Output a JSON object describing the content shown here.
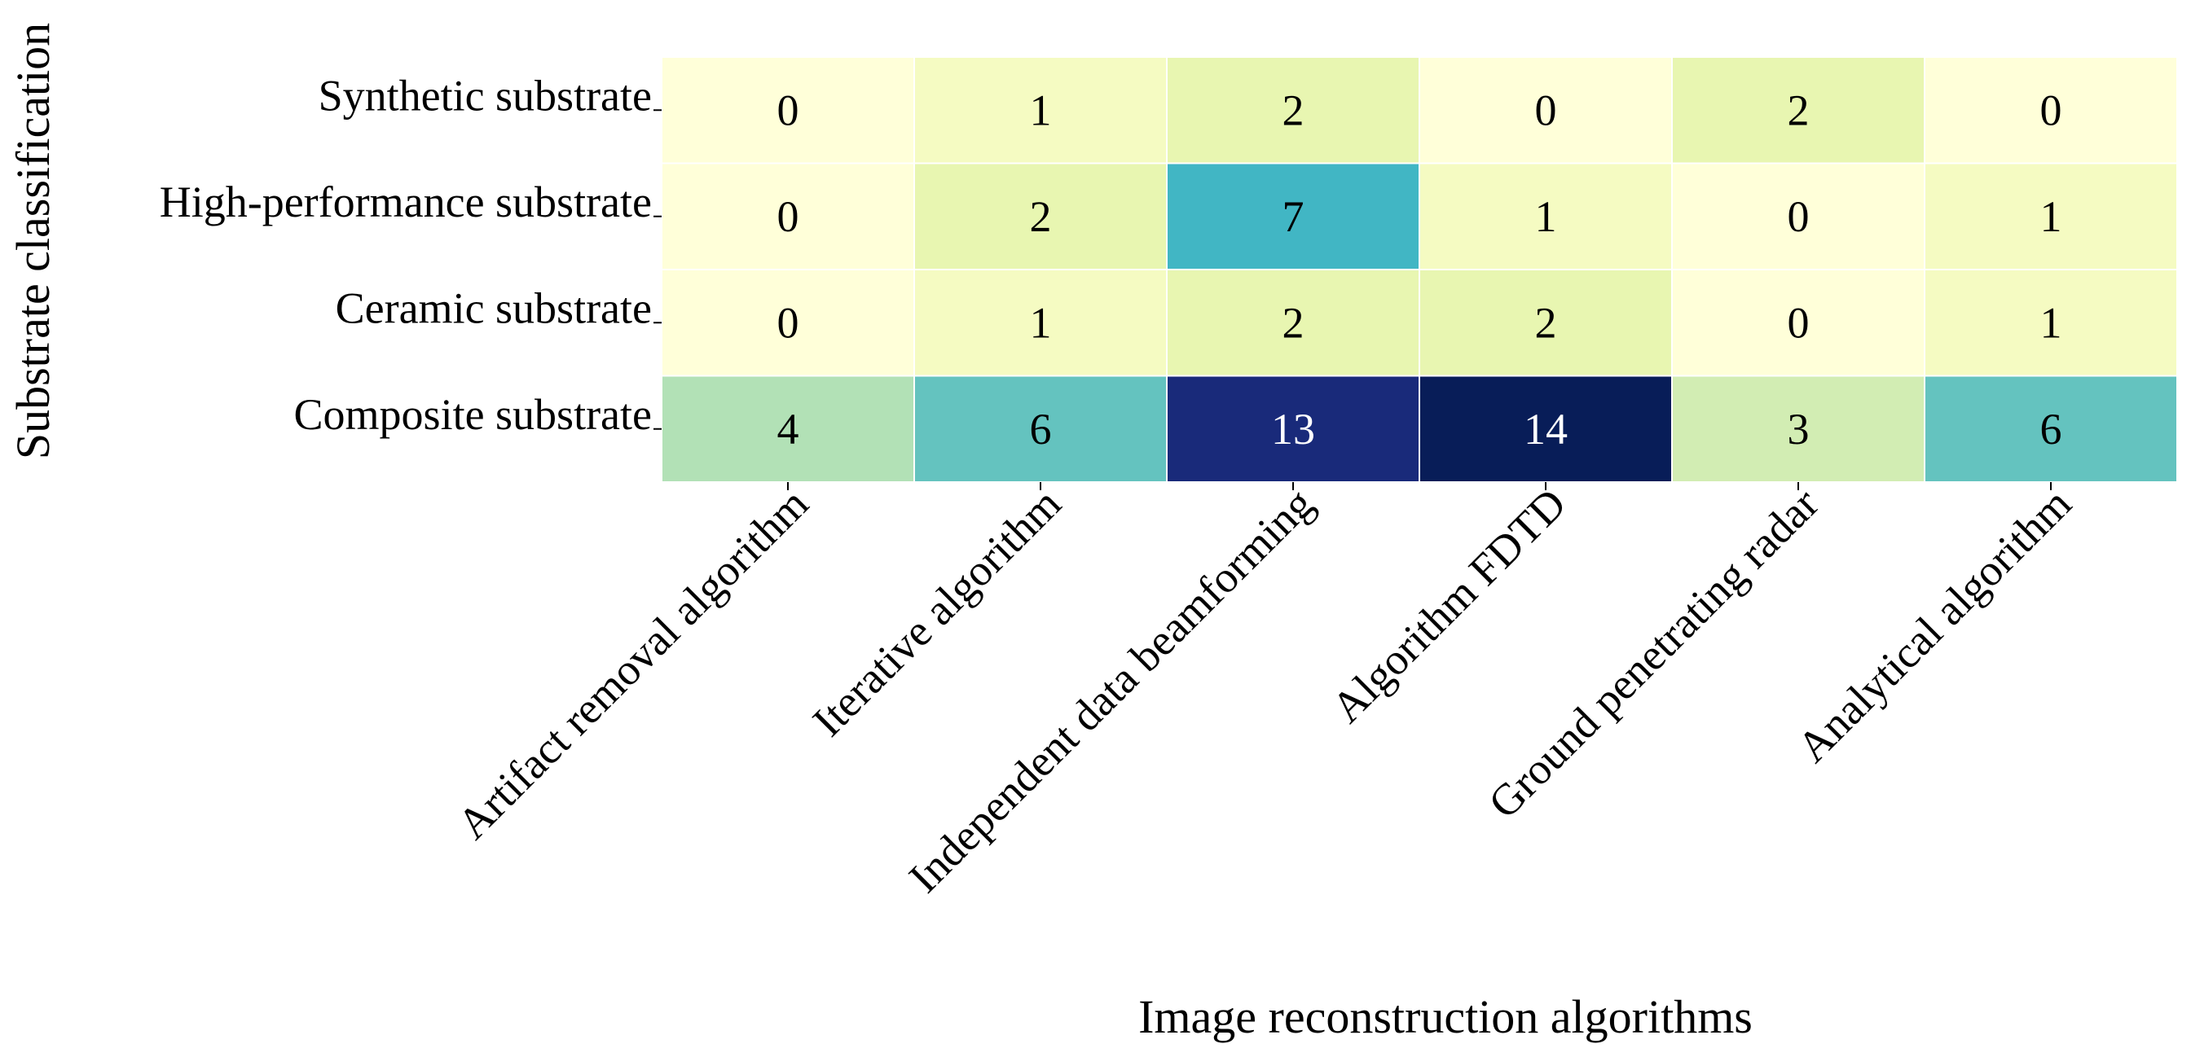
{
  "chart_data": {
    "type": "heatmap",
    "title": "",
    "xlabel": "Image reconstruction algorithms",
    "ylabel": "Substrate classification",
    "x_categories": [
      "Artifact removal algorithm",
      "Iterative algorithm",
      "Independent data beamforming",
      "Algorithm FDTD",
      "Ground penetrating radar",
      "Analytical algorithm"
    ],
    "y_categories": [
      "Synthetic substrate",
      "High-performance substrate",
      "Ceramic substrate",
      "Composite substrate"
    ],
    "values": [
      [
        0,
        1,
        2,
        0,
        2,
        0
      ],
      [
        0,
        2,
        7,
        1,
        0,
        1
      ],
      [
        0,
        1,
        2,
        2,
        0,
        1
      ],
      [
        4,
        6,
        13,
        14,
        3,
        6
      ]
    ],
    "value_range": [
      0,
      14
    ],
    "colormap": "YlGnBu",
    "colorbar": false,
    "annotated": true,
    "cell_border_color": "#ffffff",
    "text_color_dark": "#000000",
    "text_color_light": "#ffffff"
  }
}
